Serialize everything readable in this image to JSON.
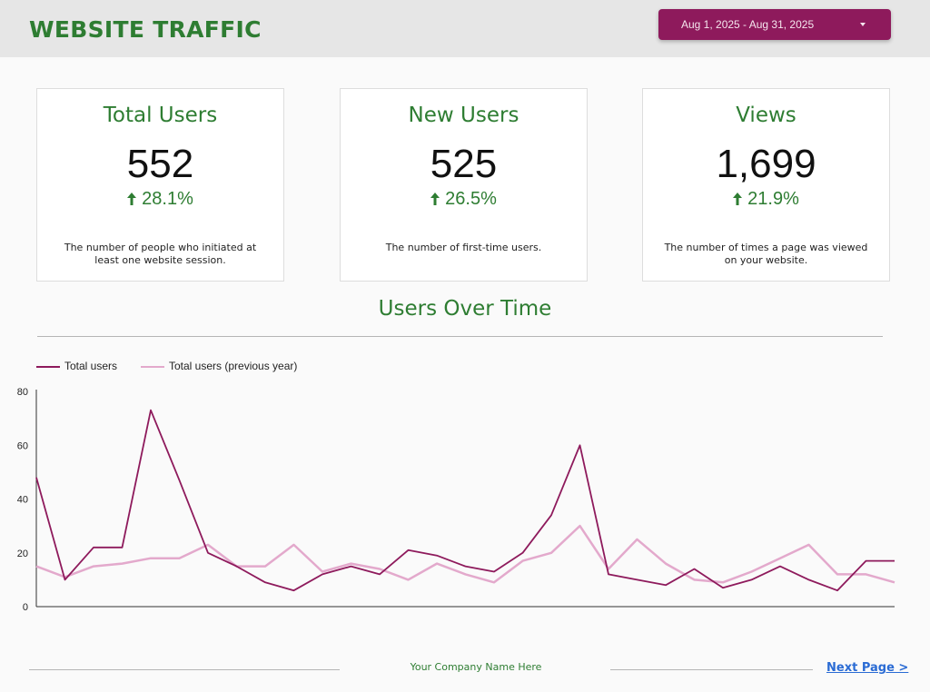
{
  "header": {
    "title": "WEBSITE TRAFFIC",
    "date_range": "Aug 1, 2025 - Aug 31, 2025"
  },
  "scorecards": [
    {
      "title": "Total Users",
      "value": "552",
      "change": "28.1%",
      "description": "The number of people who initiated at least one website session."
    },
    {
      "title": "New Users",
      "value": "525",
      "change": "26.5%",
      "description": "The number of first-time users."
    },
    {
      "title": "Views",
      "value": "1,699",
      "change": "21.9%",
      "description": "The number of times a page was viewed on your website."
    }
  ],
  "section": {
    "title": "Users Over Time"
  },
  "footer": {
    "company": "Your Company Name Here",
    "next_page": "Next Page >"
  },
  "colors": {
    "brand_green": "#2e7d32",
    "accent_magenta": "#8e1a5c",
    "previous_year": "#e3a9cc",
    "link_blue": "#2a6bd4"
  },
  "icons": {
    "change_up": "arrow-up-icon",
    "dropdown": "caret-down-icon"
  },
  "chart_data": {
    "type": "line",
    "x": [
      1,
      2,
      3,
      4,
      5,
      6,
      7,
      8,
      9,
      10,
      11,
      12,
      13,
      14,
      15,
      16,
      17,
      18,
      19,
      20,
      21,
      22,
      23,
      24,
      25,
      26,
      27,
      28,
      29,
      30,
      31
    ],
    "yticks": [
      0,
      20,
      40,
      60,
      80
    ],
    "ylim": [
      0,
      80
    ],
    "legend_position": "top-left",
    "grid": false,
    "series": [
      {
        "name": "Total users",
        "color": "#8e1a5c",
        "values": [
          48,
          10,
          22,
          22,
          73,
          47,
          20,
          15,
          9,
          6,
          12,
          15,
          12,
          21,
          19,
          15,
          13,
          20,
          34,
          60,
          12,
          10,
          8,
          14,
          7,
          10,
          15,
          10,
          6,
          17,
          17
        ]
      },
      {
        "name": "Total users (previous year)",
        "color": "#e3a9cc",
        "values": [
          15,
          11,
          15,
          16,
          18,
          18,
          23,
          15,
          15,
          23,
          13,
          16,
          14,
          10,
          16,
          12,
          9,
          17,
          20,
          30,
          14,
          25,
          16,
          10,
          9,
          13,
          18,
          23,
          12,
          12,
          9
        ]
      }
    ]
  }
}
